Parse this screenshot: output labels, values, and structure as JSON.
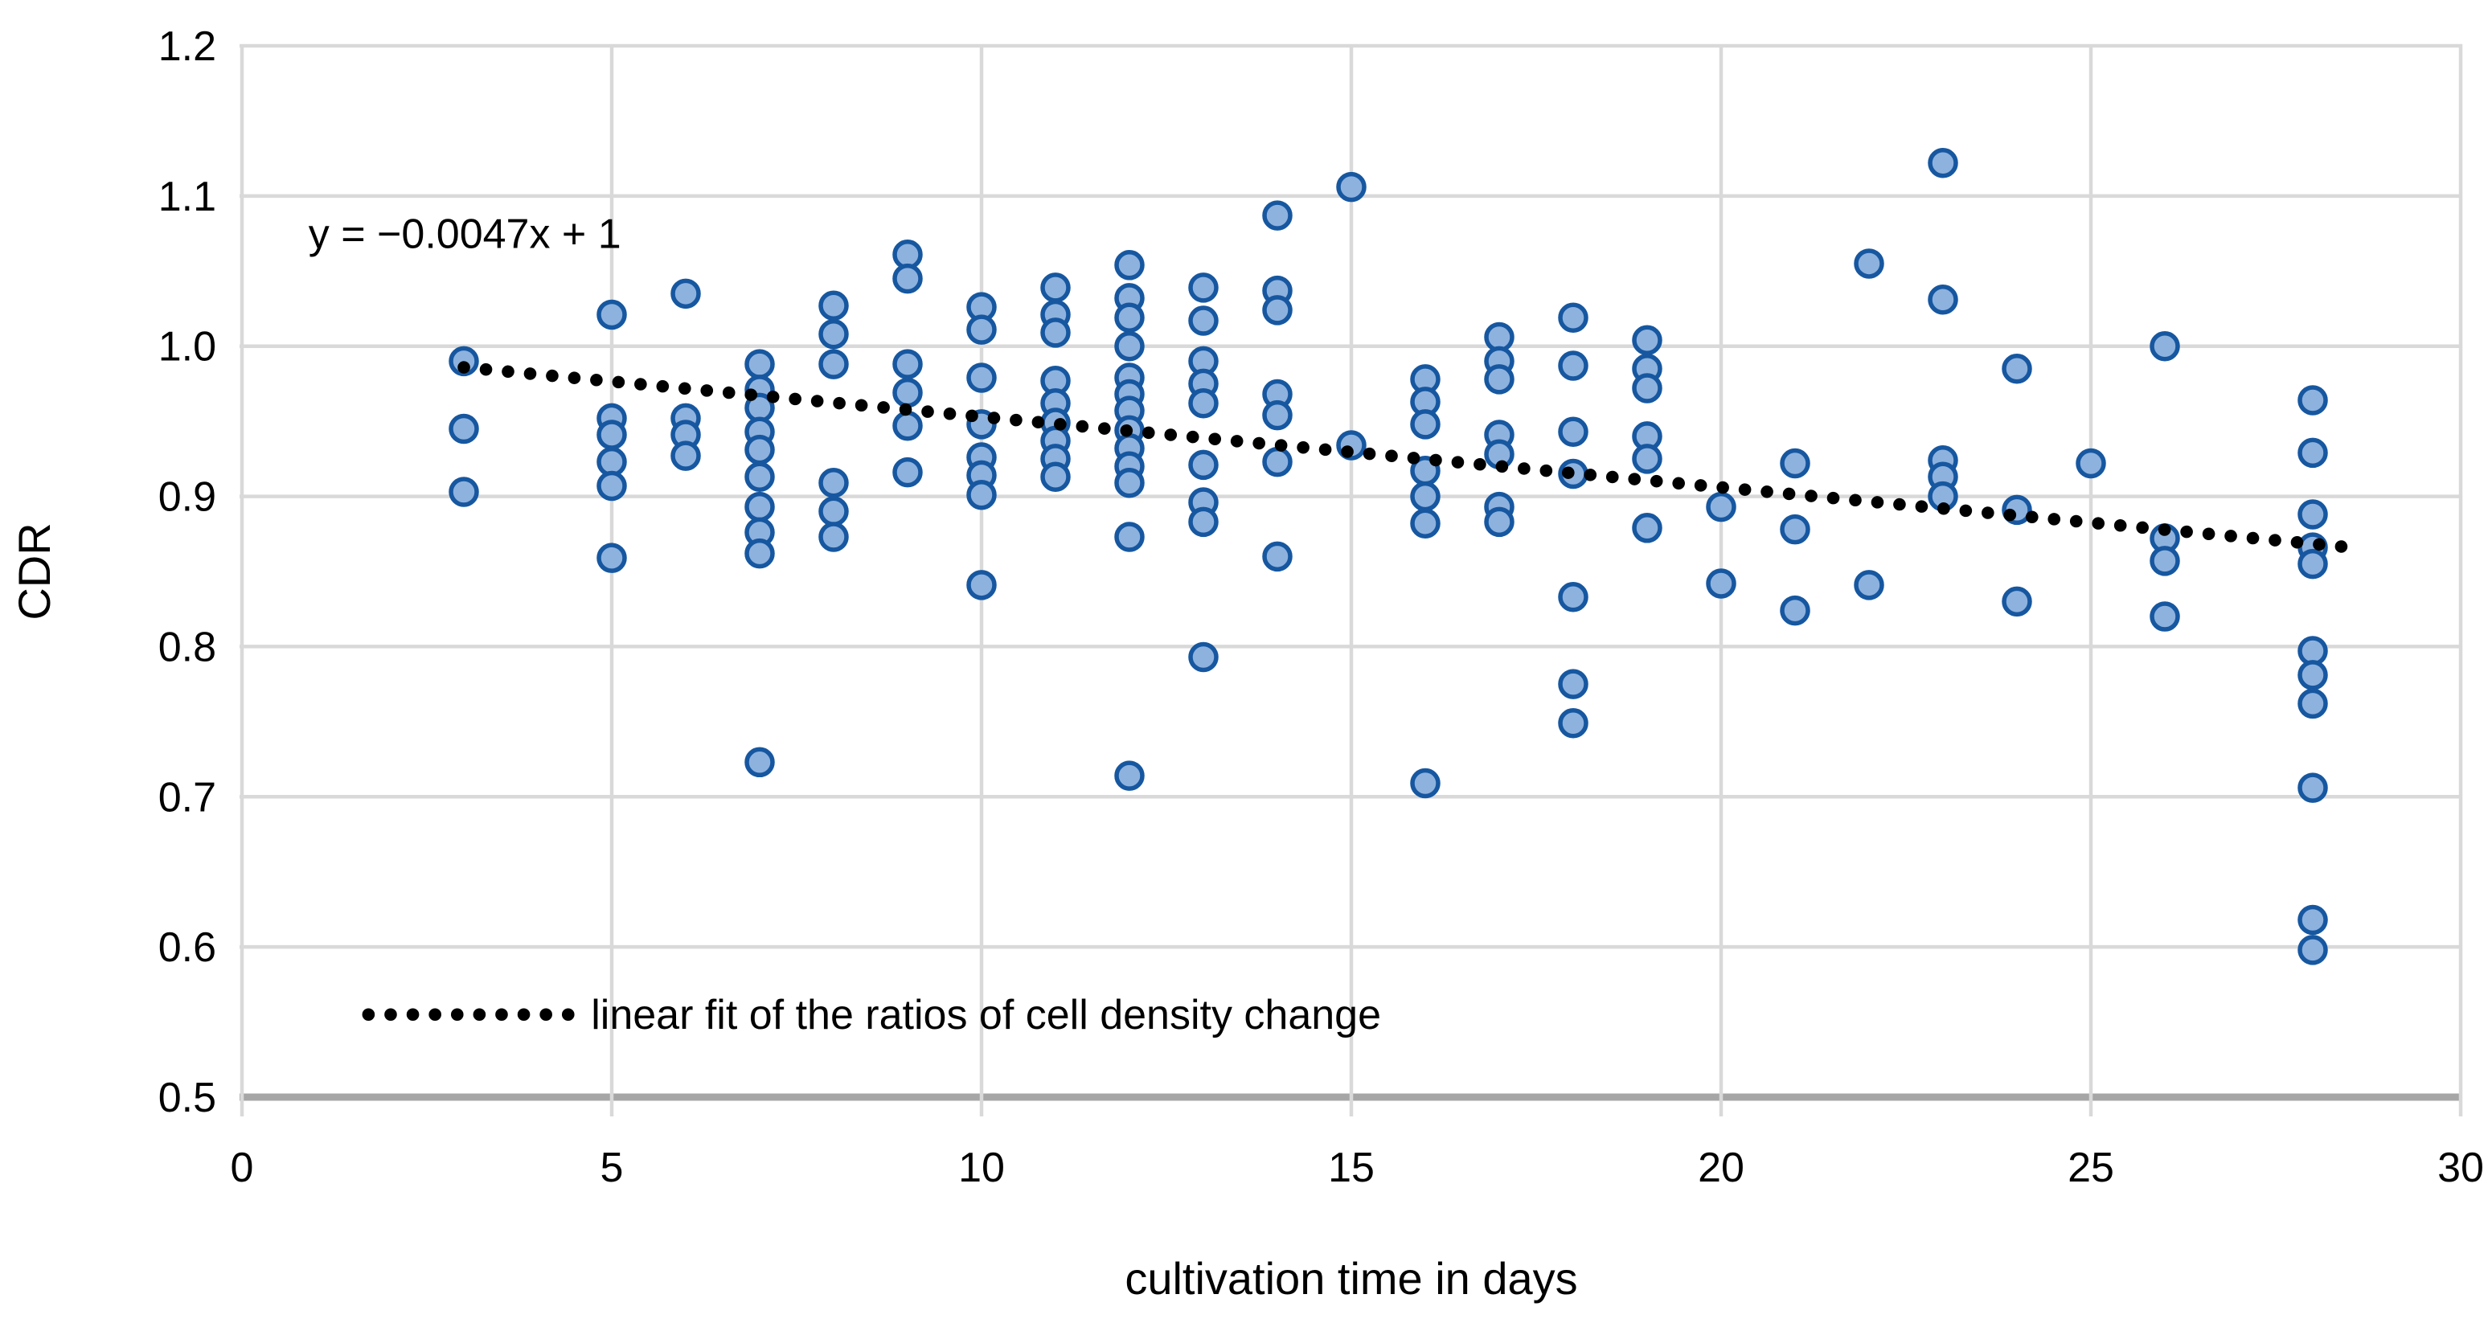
{
  "chart_data": {
    "type": "scatter",
    "title": "",
    "xlabel": "cultivation time in days",
    "ylabel": "CDR",
    "xlim": [
      0,
      30
    ],
    "ylim": [
      0.5,
      1.2
    ],
    "grid": "both",
    "x_tick_values": [
      0,
      5,
      10,
      15,
      20,
      25,
      30
    ],
    "x_tick_labels": [
      "0",
      "5",
      "10",
      "15",
      "20",
      "25",
      "30"
    ],
    "y_tick_values": [
      1.2,
      1.1,
      1.0,
      0.9,
      0.8,
      0.7,
      0.6,
      0.5
    ],
    "y_tick_labels": [
      "1.2",
      "1.1",
      "1.0",
      "0.9",
      "0.8",
      "0.7",
      "0.6",
      "0.5"
    ],
    "series": [
      {
        "name": "ratios of cell density change",
        "points": [
          [
            3,
            0.99
          ],
          [
            3,
            0.945
          ],
          [
            3,
            0.903
          ],
          [
            5,
            1.021
          ],
          [
            5,
            0.952
          ],
          [
            5,
            0.941
          ],
          [
            5,
            0.923
          ],
          [
            5,
            0.907
          ],
          [
            5,
            0.859
          ],
          [
            6,
            1.035
          ],
          [
            6,
            0.952
          ],
          [
            6,
            0.941
          ],
          [
            6,
            0.927
          ],
          [
            7,
            0.988
          ],
          [
            7,
            0.971
          ],
          [
            7,
            0.959
          ],
          [
            7,
            0.943
          ],
          [
            7,
            0.931
          ],
          [
            7,
            0.913
          ],
          [
            7,
            0.893
          ],
          [
            7,
            0.876
          ],
          [
            7,
            0.862
          ],
          [
            7,
            0.723
          ],
          [
            8,
            1.027
          ],
          [
            8,
            1.008
          ],
          [
            8,
            0.988
          ],
          [
            8,
            0.909
          ],
          [
            8,
            0.89
          ],
          [
            8,
            0.873
          ],
          [
            9,
            1.061
          ],
          [
            9,
            1.045
          ],
          [
            9,
            0.988
          ],
          [
            9,
            0.969
          ],
          [
            9,
            0.947
          ],
          [
            9,
            0.916
          ],
          [
            10,
            1.026
          ],
          [
            10,
            1.011
          ],
          [
            10,
            0.979
          ],
          [
            10,
            0.948
          ],
          [
            10,
            0.926
          ],
          [
            10,
            0.914
          ],
          [
            10,
            0.901
          ],
          [
            10,
            0.841
          ],
          [
            11,
            1.039
          ],
          [
            11,
            1.021
          ],
          [
            11,
            1.009
          ],
          [
            11,
            0.977
          ],
          [
            11,
            0.962
          ],
          [
            11,
            0.949
          ],
          [
            11,
            0.937
          ],
          [
            11,
            0.925
          ],
          [
            11,
            0.913
          ],
          [
            12,
            1.054
          ],
          [
            12,
            1.032
          ],
          [
            12,
            1.019
          ],
          [
            12,
            1.0
          ],
          [
            12,
            0.979
          ],
          [
            12,
            0.968
          ],
          [
            12,
            0.957
          ],
          [
            12,
            0.944
          ],
          [
            12,
            0.932
          ],
          [
            12,
            0.92
          ],
          [
            12,
            0.909
          ],
          [
            12,
            0.873
          ],
          [
            12,
            0.714
          ],
          [
            13,
            1.039
          ],
          [
            13,
            1.017
          ],
          [
            13,
            0.99
          ],
          [
            13,
            0.975
          ],
          [
            13,
            0.962
          ],
          [
            13,
            0.921
          ],
          [
            13,
            0.896
          ],
          [
            13,
            0.883
          ],
          [
            13,
            0.793
          ],
          [
            14,
            1.087
          ],
          [
            14,
            1.037
          ],
          [
            14,
            1.024
          ],
          [
            14,
            0.968
          ],
          [
            14,
            0.954
          ],
          [
            14,
            0.923
          ],
          [
            14,
            0.86
          ],
          [
            15,
            1.106
          ],
          [
            15,
            0.934
          ],
          [
            16,
            0.978
          ],
          [
            16,
            0.963
          ],
          [
            16,
            0.948
          ],
          [
            16,
            0.917
          ],
          [
            16,
            0.9
          ],
          [
            16,
            0.882
          ],
          [
            16,
            0.709
          ],
          [
            17,
            1.006
          ],
          [
            17,
            0.99
          ],
          [
            17,
            0.978
          ],
          [
            17,
            0.941
          ],
          [
            17,
            0.928
          ],
          [
            17,
            0.893
          ],
          [
            17,
            0.883
          ],
          [
            18,
            1.019
          ],
          [
            18,
            0.987
          ],
          [
            18,
            0.943
          ],
          [
            18,
            0.915
          ],
          [
            18,
            0.833
          ],
          [
            18,
            0.775
          ],
          [
            18,
            0.749
          ],
          [
            19,
            1.004
          ],
          [
            19,
            0.985
          ],
          [
            19,
            0.972
          ],
          [
            19,
            0.94
          ],
          [
            19,
            0.925
          ],
          [
            19,
            0.879
          ],
          [
            20,
            0.893
          ],
          [
            20,
            0.842
          ],
          [
            21,
            0.922
          ],
          [
            21,
            0.878
          ],
          [
            21,
            0.824
          ],
          [
            22,
            1.055
          ],
          [
            22,
            0.841
          ],
          [
            23,
            1.122
          ],
          [
            23,
            1.031
          ],
          [
            23,
            0.924
          ],
          [
            23,
            0.913
          ],
          [
            23,
            0.9
          ],
          [
            24,
            0.985
          ],
          [
            24,
            0.891
          ],
          [
            24,
            0.83
          ],
          [
            25,
            0.922
          ],
          [
            26,
            1.0
          ],
          [
            26,
            0.872
          ],
          [
            26,
            0.857
          ],
          [
            26,
            0.82
          ],
          [
            28,
            0.964
          ],
          [
            28,
            0.929
          ],
          [
            28,
            0.888
          ],
          [
            28,
            0.866
          ],
          [
            28,
            0.855
          ],
          [
            28,
            0.797
          ],
          [
            28,
            0.781
          ],
          [
            28,
            0.762
          ],
          [
            28,
            0.706
          ],
          [
            28,
            0.618
          ],
          [
            28,
            0.598
          ]
        ]
      }
    ],
    "trendline": {
      "equation": "y = −0.0047x + 1",
      "slope": -0.0047,
      "intercept": 1,
      "x_start": 3,
      "x_end": 28.4,
      "style": "dotted",
      "color": "#000000"
    },
    "annotation": {
      "text": "y = −0.0047x + 1",
      "x": 0.9,
      "y": 1.075
    },
    "legend": {
      "label": "linear fit of the ratios of cell density change",
      "position": "inside-bottom-left",
      "sample_style": "dotted-line",
      "x_sample_start": 1.71,
      "x_sample_end": 4.5,
      "x_text": 4.72,
      "y": 0.555
    },
    "colors": {
      "marker_fill": "#8EB2DE",
      "marker_stroke": "#1657A0",
      "gridline": "#D9D9D9",
      "axis_line": "#A6A6A6",
      "trend_dot": "#000000",
      "text": "#000000",
      "background": "#FFFFFF"
    },
    "marker_radius_px": 16,
    "marker_stroke_px": 5.5
  }
}
